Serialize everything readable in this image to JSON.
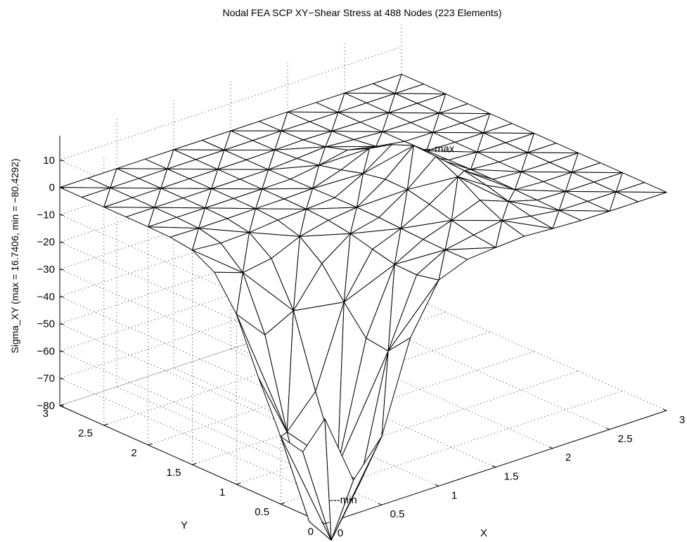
{
  "chart_data": {
    "type": "surface",
    "title": "Nodal FEA SCP XY−Shear Stress at 488 Nodes (223 Elements)",
    "xlabel": "X",
    "ylabel": "Y",
    "zlabel": "Sigma_XY  (max = 16.7406, min = −80.4292)",
    "xlim": [
      0,
      3
    ],
    "ylim": [
      0,
      3
    ],
    "zlim": [
      -80,
      16.7406
    ],
    "x_ticks": [
      "0",
      "0.5",
      "1",
      "1.5",
      "2",
      "2.5",
      "3"
    ],
    "y_ticks": [
      "0",
      "0.5",
      "1",
      "1.5",
      "2",
      "2.5",
      "3"
    ],
    "z_ticks": [
      "10",
      "0",
      "−10",
      "−20",
      "−30",
      "−40",
      "−50",
      "−60",
      "−70",
      "−80"
    ],
    "z_tick_values": [
      10,
      0,
      -10,
      -20,
      -30,
      -40,
      -50,
      -60,
      -70,
      -80
    ],
    "grid": true,
    "max_value": 16.7406,
    "min_value": -80.4292,
    "annotations": [
      {
        "text": "---max",
        "x": 1.75,
        "y": 1.15,
        "z": 16.7406
      },
      {
        "text": "---min",
        "x": 0.3,
        "y": 0.35,
        "z": -80.4292
      }
    ],
    "surface_function": "z = 16.7406*exp(-((x-1.75)^2/0.08 + (y-1.15)^2/0.5)) - 97.17*exp(-((x-0.30)^2/0.18 + (y-0.35)^2/0.35))",
    "mesh_resolution": 12
  }
}
